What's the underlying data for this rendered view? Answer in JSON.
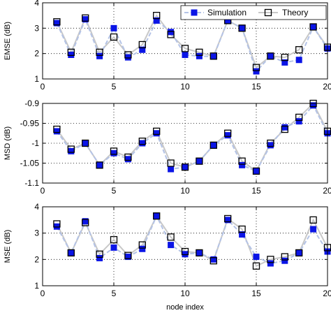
{
  "chart_data": [
    {
      "type": "line",
      "ylabel": "EMSE (dB)",
      "xlabel": "",
      "xlim": [
        0,
        20
      ],
      "ylim": [
        1,
        4
      ],
      "xticks": [
        "0",
        "5",
        "10",
        "15",
        "20"
      ],
      "yticks": [
        "1",
        "2",
        "3",
        "4"
      ],
      "grid": true,
      "legend_placement": "top-right",
      "legend": [
        "Simulation",
        "Theory"
      ],
      "x": [
        1,
        2,
        3,
        4,
        5,
        6,
        7,
        8,
        9,
        10,
        11,
        12,
        13,
        14,
        15,
        16,
        17,
        18,
        19,
        20
      ],
      "series": [
        {
          "name": "Simulation",
          "values": [
            3.2,
            1.95,
            3.35,
            1.9,
            3.0,
            1.85,
            2.15,
            3.3,
            2.85,
            1.95,
            1.9,
            1.88,
            3.3,
            3.0,
            1.3,
            1.9,
            1.65,
            1.75,
            3.05,
            2.2
          ]
        },
        {
          "name": "Theory",
          "values": [
            3.25,
            2.05,
            3.4,
            2.05,
            2.65,
            1.95,
            2.35,
            3.5,
            2.75,
            2.2,
            2.05,
            1.9,
            3.3,
            3.0,
            1.45,
            1.9,
            1.85,
            2.15,
            3.05,
            2.25
          ]
        }
      ]
    },
    {
      "type": "line",
      "ylabel": "MSD (dB)",
      "xlabel": "",
      "xlim": [
        0,
        20
      ],
      "ylim": [
        -1.1,
        -0.9
      ],
      "xticks": [
        "0",
        "5",
        "10",
        "15",
        "20"
      ],
      "yticks": [
        "-1.1",
        "-1.05",
        "-1",
        "-0.95",
        "-0.9"
      ],
      "grid": true,
      "x": [
        1,
        2,
        3,
        4,
        5,
        6,
        7,
        8,
        9,
        10,
        11,
        12,
        13,
        14,
        15,
        16,
        17,
        18,
        19,
        20
      ],
      "series": [
        {
          "name": "Simulation",
          "values": [
            -0.97,
            -1.02,
            -1.0,
            -1.055,
            -1.025,
            -1.04,
            -1.0,
            -0.975,
            -1.065,
            -1.06,
            -1.045,
            -1.005,
            -0.98,
            -1.055,
            -1.07,
            -1.005,
            -0.96,
            -0.945,
            -0.905,
            -0.975
          ]
        },
        {
          "name": "Theory",
          "values": [
            -0.965,
            -1.015,
            -1.0,
            -1.055,
            -1.02,
            -1.035,
            -0.995,
            -0.97,
            -1.05,
            -1.06,
            -1.045,
            -1.005,
            -0.975,
            -1.045,
            -1.07,
            -1.0,
            -0.965,
            -0.935,
            -0.9,
            -0.97
          ]
        }
      ]
    },
    {
      "type": "line",
      "ylabel": "MSE (dB)",
      "xlabel": "node index",
      "xlim": [
        0,
        20
      ],
      "ylim": [
        1,
        4
      ],
      "xticks": [
        "0",
        "5",
        "10",
        "15",
        "20"
      ],
      "yticks": [
        "1",
        "2",
        "3",
        "4"
      ],
      "grid": true,
      "x": [
        1,
        2,
        3,
        4,
        5,
        6,
        7,
        8,
        9,
        10,
        11,
        12,
        13,
        14,
        15,
        16,
        17,
        18,
        19,
        20
      ],
      "series": [
        {
          "name": "Simulation",
          "values": [
            3.25,
            2.25,
            3.45,
            2.05,
            2.45,
            2.1,
            2.4,
            3.65,
            2.55,
            2.2,
            2.25,
            2.0,
            3.5,
            2.95,
            2.1,
            1.85,
            1.95,
            2.25,
            3.15,
            2.3
          ]
        },
        {
          "name": "Theory",
          "values": [
            3.35,
            2.25,
            3.4,
            2.2,
            2.75,
            2.15,
            2.55,
            3.65,
            2.85,
            2.3,
            2.25,
            1.95,
            3.55,
            3.15,
            1.75,
            2.0,
            2.1,
            2.25,
            3.5,
            2.45
          ]
        }
      ]
    }
  ],
  "colors": {
    "simulation_marker": "#0a14e6",
    "simulation_line": "#b4c3e6",
    "theory_marker_edge": "#000000",
    "theory_line": "#c8c8c8"
  }
}
